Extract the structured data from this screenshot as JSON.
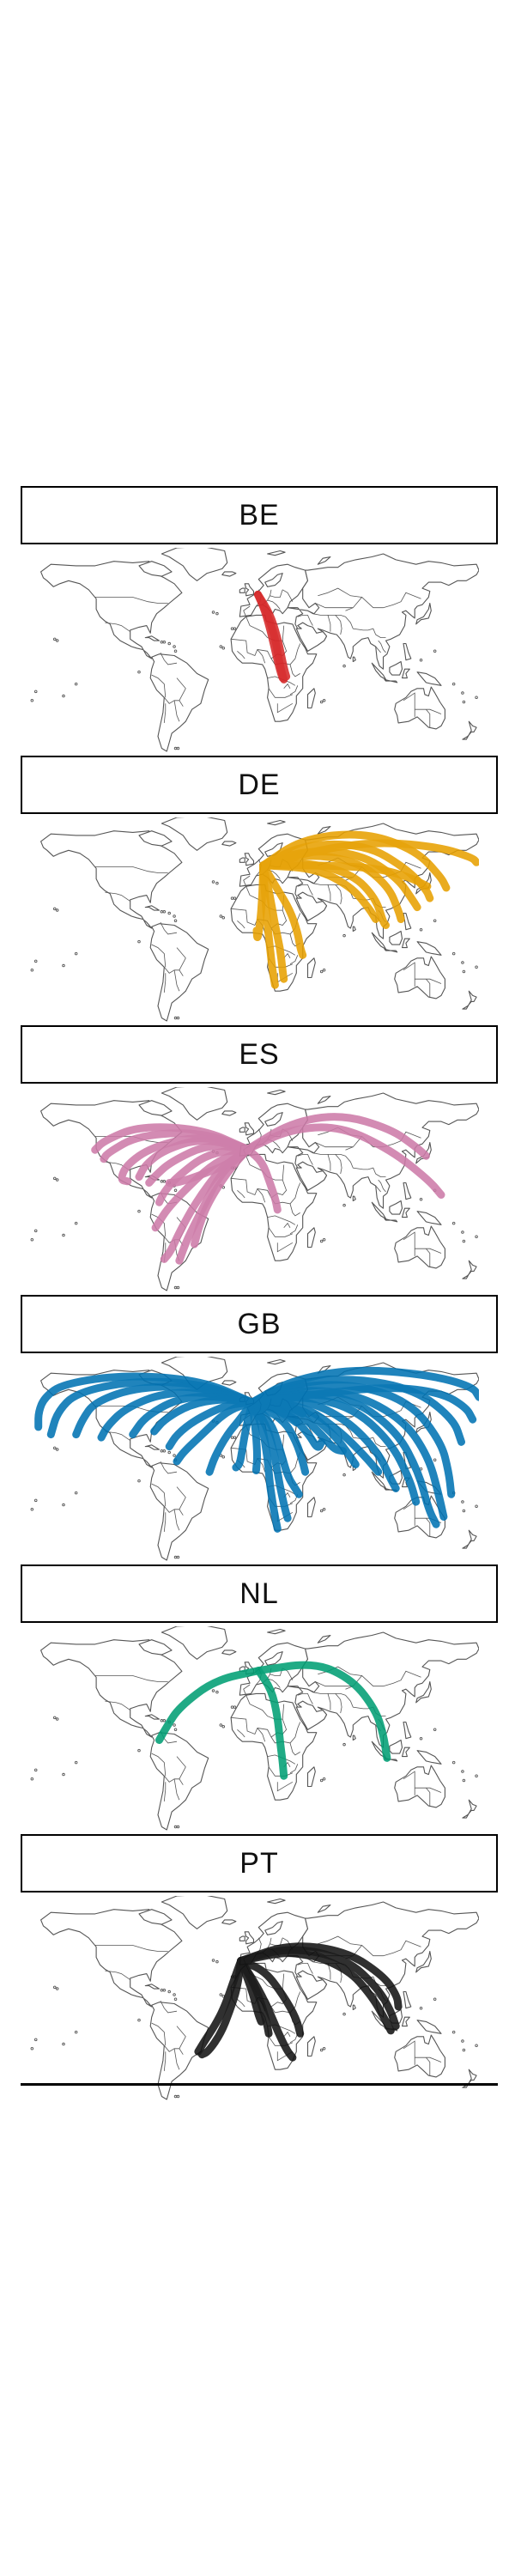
{
  "panels": [
    {
      "code": "BE",
      "color": "#d62728",
      "routes": "be"
    },
    {
      "code": "DE",
      "color": "#e69f00",
      "routes": "de"
    },
    {
      "code": "ES",
      "color": "#cc79a7",
      "routes": "es"
    },
    {
      "code": "GB",
      "color": "#0072b2",
      "routes": "gb"
    },
    {
      "code": "NL",
      "color": "#009e73",
      "routes": "nl"
    },
    {
      "code": "PT",
      "color": "#111111",
      "routes": "pt"
    }
  ],
  "map_style": {
    "land_stroke": "#555555",
    "land_fill": "#ffffff"
  }
}
